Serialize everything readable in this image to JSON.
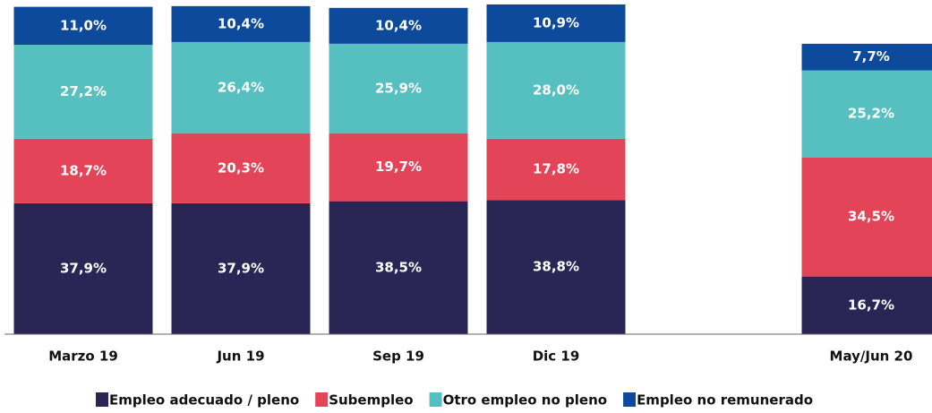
{
  "chart_data": {
    "type": "stacked_bar",
    "categories": [
      "Marzo 19",
      "Jun  19",
      "Sep 19",
      "Dic 19",
      null,
      "May/Jun 20"
    ],
    "series": [
      {
        "name": "Empleo adecuado / pleno",
        "color": "#2b2556",
        "values": [
          37.9,
          37.9,
          38.5,
          38.8,
          null,
          16.7
        ],
        "value_labels": [
          "37,9%",
          "37,9%",
          "38,5%",
          "38,8%",
          null,
          "16,7%"
        ]
      },
      {
        "name": "Subempleo",
        "color": "#e44458",
        "values": [
          18.7,
          20.3,
          19.7,
          17.8,
          null,
          34.5
        ],
        "value_labels": [
          "18,7%",
          "20,3%",
          "19,7%",
          "17,8%",
          null,
          "34,5%"
        ]
      },
      {
        "name": "Otro empleo no pleno",
        "color": "#56bfbf",
        "values": [
          27.2,
          26.4,
          25.9,
          28.0,
          null,
          25.2
        ],
        "value_labels": [
          "27,2%",
          "26,4%",
          "25,9%",
          "28,0%",
          null,
          "25,2%"
        ]
      },
      {
        "name": "Empleo no remunerado",
        "color": "#0d4a9c",
        "values": [
          11.0,
          10.4,
          10.4,
          10.9,
          null,
          7.7
        ],
        "value_labels": [
          "11,0%",
          "10,4%",
          "10,4%",
          "10,9%",
          null,
          "7,7%"
        ]
      }
    ],
    "ylim": [
      0,
      96
    ],
    "legend": "bottom"
  }
}
